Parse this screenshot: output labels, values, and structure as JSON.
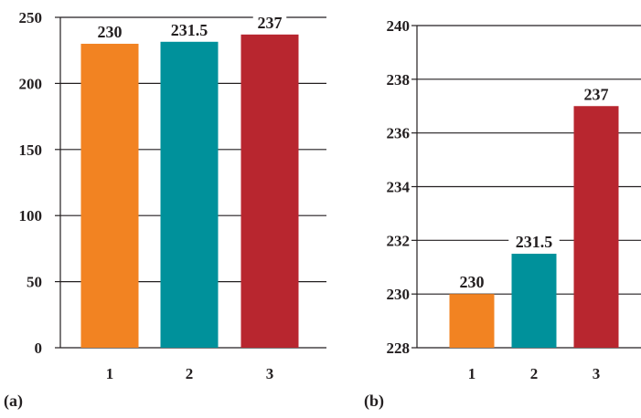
{
  "chart_data": [
    {
      "type": "bar",
      "panel_label": "(a)",
      "categories": [
        "1",
        "2",
        "3"
      ],
      "values": [
        230,
        231.5,
        237
      ],
      "data_labels": [
        "230",
        "231.5",
        "237"
      ],
      "colors": [
        "#f28322",
        "#00919b",
        "#b8262f"
      ],
      "ylim": [
        0,
        250
      ],
      "yticks": [
        "0",
        "50",
        "100",
        "150",
        "200",
        "250"
      ],
      "grid": true,
      "xlabel": "",
      "ylabel": "",
      "title": ""
    },
    {
      "type": "bar",
      "panel_label": "(b)",
      "categories": [
        "1",
        "2",
        "3"
      ],
      "values": [
        230,
        231.5,
        237
      ],
      "data_labels": [
        "230",
        "231.5",
        "237"
      ],
      "colors": [
        "#f28322",
        "#00919b",
        "#b8262f"
      ],
      "ylim": [
        228,
        240
      ],
      "yticks": [
        "228",
        "230",
        "232",
        "234",
        "236",
        "238",
        "240"
      ],
      "grid": true,
      "xlabel": "",
      "ylabel": "",
      "title": ""
    }
  ]
}
